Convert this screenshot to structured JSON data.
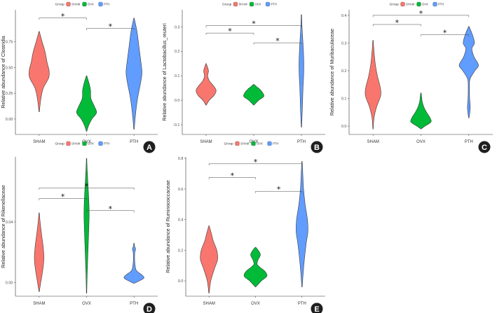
{
  "figure": {
    "legend_title": "Group",
    "groups": [
      "SHAM",
      "OVX",
      "PTH"
    ],
    "colors": {
      "SHAM": "#F8766D",
      "OVX": "#00BA38",
      "PTH": "#619CFF"
    }
  },
  "chart_data": [
    {
      "type": "violin",
      "panel_label": "A",
      "ylabel": "Relative abundance of Clostridia",
      "categories": [
        "SHAM",
        "OVX",
        "PTH"
      ],
      "ylim": [
        -0.15,
        1.06
      ],
      "yticks": [
        0.0,
        0.25,
        0.5,
        0.75
      ],
      "ytick_labels": [
        "0.00",
        "0.25",
        "0.50",
        "0.75"
      ],
      "series": [
        {
          "name": "SHAM",
          "profile": [
            [
              0.07,
              0.01
            ],
            [
              0.2,
              0.09
            ],
            [
              0.3,
              0.21
            ],
            [
              0.4,
              0.48
            ],
            [
              0.47,
              0.5
            ],
            [
              0.55,
              0.4
            ],
            [
              0.65,
              0.3
            ],
            [
              0.75,
              0.15
            ],
            [
              0.85,
              0.01
            ]
          ]
        },
        {
          "name": "OVX",
          "profile": [
            [
              -0.12,
              0.01
            ],
            [
              -0.06,
              0.11
            ],
            [
              0.0,
              0.27
            ],
            [
              0.06,
              0.5
            ],
            [
              0.12,
              0.4
            ],
            [
              0.2,
              0.22
            ],
            [
              0.28,
              0.2
            ],
            [
              0.35,
              0.12
            ],
            [
              0.42,
              0.01
            ]
          ]
        },
        {
          "name": "PTH",
          "profile": [
            [
              -0.1,
              0.01
            ],
            [
              0.05,
              0.08
            ],
            [
              0.2,
              0.18
            ],
            [
              0.35,
              0.33
            ],
            [
              0.45,
              0.4
            ],
            [
              0.55,
              0.35
            ],
            [
              0.7,
              0.25
            ],
            [
              0.85,
              0.15
            ],
            [
              0.98,
              0.01
            ]
          ]
        }
      ],
      "significance": [
        {
          "from": "SHAM",
          "to": "OVX",
          "y": 0.98,
          "label": "*"
        },
        {
          "from": "OVX",
          "to": "PTH",
          "y": 0.88,
          "label": "*"
        }
      ]
    },
    {
      "type": "violin",
      "panel_label": "B",
      "ylabel": "Relative abundance of Lactobacillus_reuteri",
      "categories": [
        "SHAM",
        "OVX",
        "PTH"
      ],
      "ylim": [
        -0.14,
        0.37
      ],
      "yticks": [
        -0.1,
        0.0,
        0.1,
        0.2,
        0.3
      ],
      "ytick_labels": [
        "-0.1",
        "0.0",
        "0.1",
        "0.2",
        "0.3"
      ],
      "series": [
        {
          "name": "SHAM",
          "profile": [
            [
              -0.02,
              0.01
            ],
            [
              0.0,
              0.16
            ],
            [
              0.02,
              0.4
            ],
            [
              0.04,
              0.5
            ],
            [
              0.06,
              0.36
            ],
            [
              0.08,
              0.16
            ],
            [
              0.1,
              0.08
            ],
            [
              0.12,
              0.12
            ],
            [
              0.14,
              0.05
            ],
            [
              0.15,
              0.01
            ]
          ]
        },
        {
          "name": "OVX",
          "profile": [
            [
              -0.02,
              0.01
            ],
            [
              0.0,
              0.25
            ],
            [
              0.015,
              0.5
            ],
            [
              0.03,
              0.45
            ],
            [
              0.045,
              0.3
            ],
            [
              0.055,
              0.15
            ],
            [
              0.065,
              0.01
            ]
          ]
        },
        {
          "name": "PTH",
          "profile": [
            [
              -0.11,
              0.01
            ],
            [
              -0.05,
              0.04
            ],
            [
              0.0,
              0.06
            ],
            [
              0.05,
              0.08
            ],
            [
              0.1,
              0.11
            ],
            [
              0.15,
              0.12
            ],
            [
              0.2,
              0.1
            ],
            [
              0.26,
              0.06
            ],
            [
              0.3,
              0.03
            ],
            [
              0.35,
              0.01
            ]
          ]
        }
      ],
      "significance": [
        {
          "from": "SHAM",
          "to": "PTH",
          "y": 0.305,
          "label": "*"
        },
        {
          "from": "SHAM",
          "to": "OVX",
          "y": 0.275,
          "label": "*"
        },
        {
          "from": "OVX",
          "to": "PTH",
          "y": 0.235,
          "label": "*"
        }
      ]
    },
    {
      "type": "violin",
      "panel_label": "C",
      "ylabel": "Relative abundance of Muribaculaceae",
      "categories": [
        "SHAM",
        "OVX",
        "PTH"
      ],
      "ylim": [
        -0.03,
        0.42
      ],
      "yticks": [
        0.0,
        0.1,
        0.2,
        0.3,
        0.4
      ],
      "ytick_labels": [
        "0.0",
        "0.1",
        "0.2",
        "0.3",
        "0.4"
      ],
      "series": [
        {
          "name": "SHAM",
          "profile": [
            [
              -0.01,
              0.01
            ],
            [
              0.03,
              0.05
            ],
            [
              0.07,
              0.18
            ],
            [
              0.11,
              0.38
            ],
            [
              0.14,
              0.36
            ],
            [
              0.18,
              0.22
            ],
            [
              0.22,
              0.12
            ],
            [
              0.26,
              0.06
            ],
            [
              0.31,
              0.01
            ]
          ]
        },
        {
          "name": "OVX",
          "profile": [
            [
              -0.01,
              0.01
            ],
            [
              0.0,
              0.2
            ],
            [
              0.015,
              0.5
            ],
            [
              0.03,
              0.45
            ],
            [
              0.05,
              0.28
            ],
            [
              0.07,
              0.14
            ],
            [
              0.09,
              0.06
            ],
            [
              0.11,
              0.03
            ],
            [
              0.12,
              0.01
            ]
          ]
        },
        {
          "name": "PTH",
          "profile": [
            [
              0.03,
              0.01
            ],
            [
              0.05,
              0.05
            ],
            [
              0.07,
              0.07
            ],
            [
              0.1,
              0.04
            ],
            [
              0.14,
              0.03
            ],
            [
              0.17,
              0.06
            ],
            [
              0.2,
              0.3
            ],
            [
              0.22,
              0.48
            ],
            [
              0.25,
              0.26
            ],
            [
              0.28,
              0.15
            ],
            [
              0.3,
              0.28
            ],
            [
              0.33,
              0.18
            ],
            [
              0.36,
              0.01
            ]
          ]
        }
      ],
      "significance": [
        {
          "from": "SHAM",
          "to": "PTH",
          "y": 0.4,
          "label": "*"
        },
        {
          "from": "SHAM",
          "to": "OVX",
          "y": 0.367,
          "label": "*"
        },
        {
          "from": "OVX",
          "to": "PTH",
          "y": 0.33,
          "label": "*"
        }
      ]
    },
    {
      "type": "violin",
      "panel_label": "D",
      "ylabel": "Relative abundance of Rikenellaceae",
      "categories": [
        "SHAM",
        "OVX",
        "PTH"
      ],
      "ylim": [
        -0.009,
        0.083
      ],
      "yticks": [
        0.0,
        0.04
      ],
      "ytick_labels": [
        "0.00",
        "0.04"
      ],
      "series": [
        {
          "name": "SHAM",
          "profile": [
            [
              -0.006,
              0.01
            ],
            [
              0.0,
              0.08
            ],
            [
              0.008,
              0.18
            ],
            [
              0.016,
              0.24
            ],
            [
              0.024,
              0.2
            ],
            [
              0.032,
              0.12
            ],
            [
              0.04,
              0.05
            ],
            [
              0.046,
              0.01
            ]
          ]
        },
        {
          "name": "OVX",
          "profile": [
            [
              -0.007,
              0.01
            ],
            [
              0.005,
              0.03
            ],
            [
              0.02,
              0.07
            ],
            [
              0.035,
              0.11
            ],
            [
              0.045,
              0.13
            ],
            [
              0.055,
              0.11
            ],
            [
              0.065,
              0.07
            ],
            [
              0.075,
              0.03
            ],
            [
              0.082,
              0.01
            ]
          ]
        },
        {
          "name": "PTH",
          "profile": [
            [
              -0.0005,
              0.01
            ],
            [
              0.001,
              0.25
            ],
            [
              0.003,
              0.5
            ],
            [
              0.005,
              0.4
            ],
            [
              0.008,
              0.12
            ],
            [
              0.012,
              0.05
            ],
            [
              0.016,
              0.03
            ],
            [
              0.02,
              0.04
            ],
            [
              0.022,
              0.08
            ],
            [
              0.024,
              0.03
            ],
            [
              0.026,
              0.01
            ]
          ]
        }
      ],
      "significance": [
        {
          "from": "SHAM",
          "to": "PTH",
          "y": 0.0625,
          "label": "*"
        },
        {
          "from": "SHAM",
          "to": "OVX",
          "y": 0.0555,
          "label": "*"
        },
        {
          "from": "OVX",
          "to": "PTH",
          "y": 0.0475,
          "label": "*"
        }
      ]
    },
    {
      "type": "violin",
      "panel_label": "E",
      "ylabel": "Relative abundance of Ruminococcaceae",
      "categories": [
        "SHAM",
        "OVX",
        "PTH"
      ],
      "ylim": [
        -0.1,
        0.81
      ],
      "yticks": [
        0.0,
        0.2,
        0.4,
        0.6,
        0.8
      ],
      "ytick_labels": [
        "0.0",
        "0.2",
        "0.4",
        "0.6",
        "0.8"
      ],
      "series": [
        {
          "name": "SHAM",
          "profile": [
            [
              -0.08,
              0.01
            ],
            [
              0.0,
              0.09
            ],
            [
              0.08,
              0.28
            ],
            [
              0.14,
              0.44
            ],
            [
              0.2,
              0.4
            ],
            [
              0.26,
              0.22
            ],
            [
              0.31,
              0.12
            ],
            [
              0.36,
              0.01
            ]
          ]
        },
        {
          "name": "OVX",
          "profile": [
            [
              -0.04,
              0.01
            ],
            [
              0.0,
              0.3
            ],
            [
              0.03,
              0.58
            ],
            [
              0.06,
              0.5
            ],
            [
              0.09,
              0.22
            ],
            [
              0.11,
              0.08
            ],
            [
              0.14,
              0.14
            ],
            [
              0.17,
              0.25
            ],
            [
              0.2,
              0.14
            ],
            [
              0.22,
              0.01
            ]
          ]
        },
        {
          "name": "PTH",
          "profile": [
            [
              -0.04,
              0.01
            ],
            [
              0.05,
              0.06
            ],
            [
              0.15,
              0.13
            ],
            [
              0.25,
              0.22
            ],
            [
              0.32,
              0.3
            ],
            [
              0.4,
              0.28
            ],
            [
              0.5,
              0.16
            ],
            [
              0.6,
              0.08
            ],
            [
              0.7,
              0.04
            ],
            [
              0.78,
              0.01
            ]
          ]
        }
      ],
      "significance": [
        {
          "from": "SHAM",
          "to": "PTH",
          "y": 0.765,
          "label": "*"
        },
        {
          "from": "SHAM",
          "to": "OVX",
          "y": 0.675,
          "label": "*"
        },
        {
          "from": "OVX",
          "to": "PTH",
          "y": 0.585,
          "label": "*"
        }
      ]
    }
  ]
}
